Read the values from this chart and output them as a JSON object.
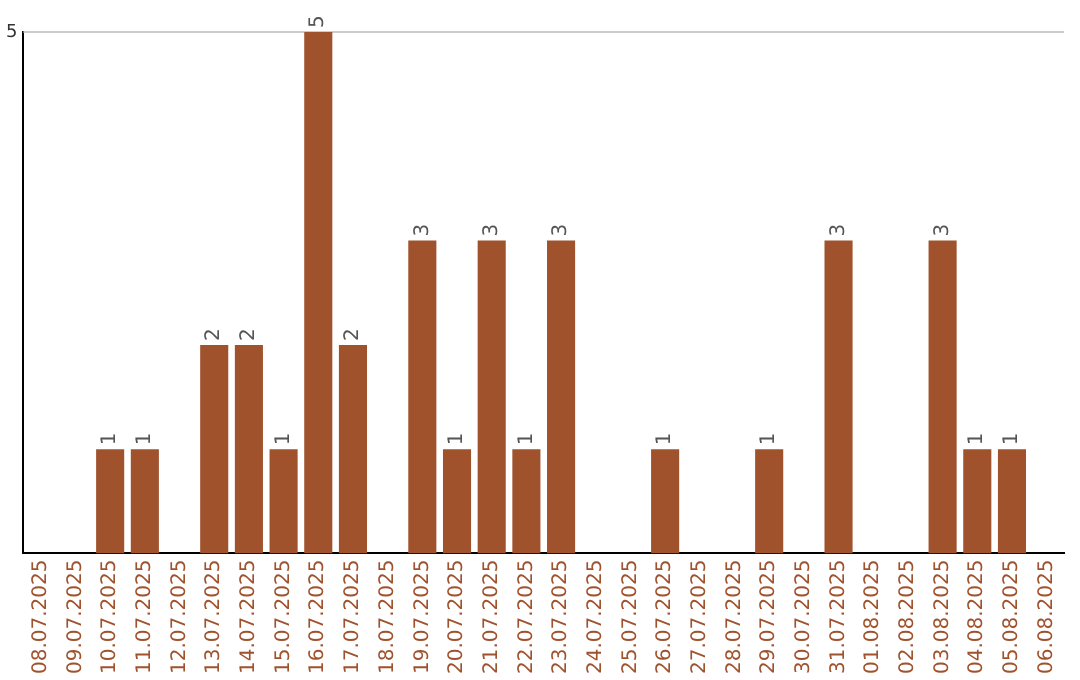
{
  "chart_data": {
    "type": "bar",
    "categories": [
      "08.07.2025",
      "09.07.2025",
      "10.07.2025",
      "11.07.2025",
      "12.07.2025",
      "13.07.2025",
      "14.07.2025",
      "15.07.2025",
      "16.07.2025",
      "17.07.2025",
      "18.07.2025",
      "19.07.2025",
      "20.07.2025",
      "21.07.2025",
      "22.07.2025",
      "23.07.2025",
      "24.07.2025",
      "25.07.2025",
      "26.07.2025",
      "27.07.2025",
      "28.07.2025",
      "29.07.2025",
      "30.07.2025",
      "31.07.2025",
      "01.08.2025",
      "02.08.2025",
      "03.08.2025",
      "04.08.2025",
      "05.08.2025",
      "06.08.2025"
    ],
    "values": [
      0,
      0,
      1,
      1,
      0,
      2,
      2,
      1,
      5,
      2,
      0,
      3,
      1,
      3,
      1,
      3,
      0,
      0,
      1,
      0,
      0,
      1,
      0,
      3,
      0,
      0,
      3,
      1,
      1,
      0
    ],
    "value_labels": [
      null,
      null,
      "1",
      "1",
      null,
      "2",
      "2",
      "1",
      "5",
      "2",
      null,
      "3",
      "1",
      "3",
      "1",
      "3",
      null,
      null,
      "1",
      null,
      null,
      "1",
      null,
      "3",
      null,
      null,
      "3",
      "1",
      "1",
      null
    ],
    "color": "#a0522d",
    "ylim": [
      0,
      5
    ],
    "yticks": [
      5
    ],
    "ref_lines": [
      {
        "axis": "y",
        "value": 5,
        "color": "#cccccc"
      }
    ],
    "legend": false
  }
}
